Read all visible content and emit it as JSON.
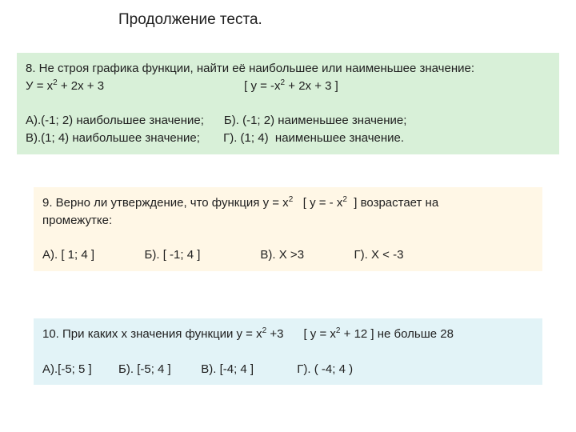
{
  "title": "Продолжение теста.",
  "q8": {
    "bg": "#d8f0d8",
    "line1a": "8. Не строя графика функции, найти её наибольшее или наименьшее значение:",
    "line2_left": "У = х",
    "line2_exp1": "2",
    "line2_mid": " + 2х + 3",
    "line2_gap": "                                          ",
    "line2_br": "[ у = -х",
    "line2_exp2": "2",
    "line2_end": " + 2х + 3 ]",
    "blank": " ",
    "optA": "А).(-1; 2) наибольшее значение;",
    "gapAB": "      ",
    "optB": "Б). (-1; 2) наименьшее значение;",
    "optV": "В).(1; 4) наибольшее значение;",
    "gapVG": "       ",
    "optG": "Г). (1; 4)  наименьшее значение."
  },
  "q9": {
    "bg": "#fff7e6",
    "l1a": "9. Верно ли утверждение, что функция у = х",
    "l1exp": "2",
    "l1b": "   [ у = - х",
    "l1exp2": "2",
    "l1c": "  ] возрастает на",
    "l2": "промежутке:",
    "blank": " ",
    "optA": "А). [ 1; 4 ]",
    "gap1": "               ",
    "optB": "Б). [ -1; 4 ]",
    "gap2": "                  ",
    "optV": "В). Х >3",
    "gap3": "               ",
    "optG": "Г). Х < -3"
  },
  "q10": {
    "bg": "#e2f3f7",
    "l1a": "10. При каких х значения функции у = х",
    "l1e1": "2",
    "l1b": " +3      [ у = х",
    "l1e2": "2",
    "l1c": " + 12 ] не больше 28",
    "blank": " ",
    "optA": "А).[-5; 5 ]",
    "gap1": "        ",
    "optB": "Б). [-5; 4 ]",
    "gap2": "         ",
    "optV": "В). [-4; 4 ]",
    "gap3": "             ",
    "optG": "Г). ( -4; 4 )"
  }
}
